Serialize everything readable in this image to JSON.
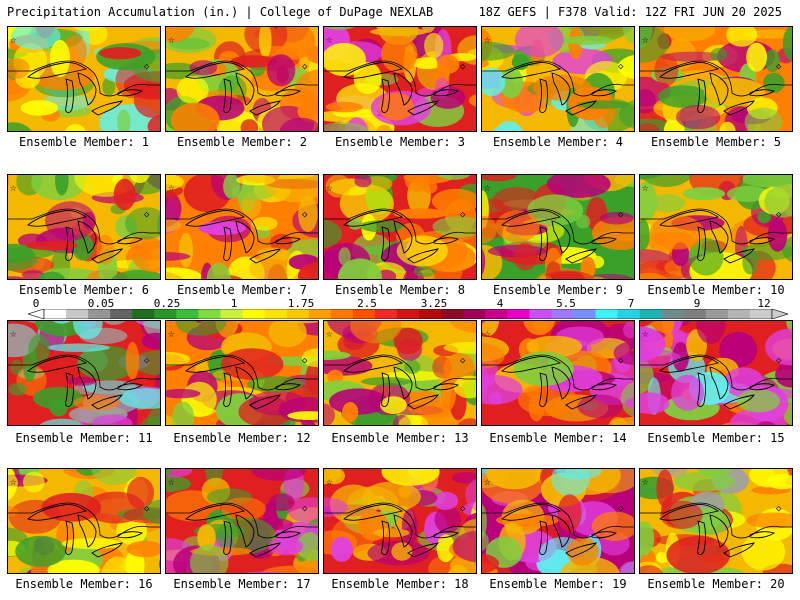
{
  "header": {
    "left": "Precipitation Accumulation (in.) | College of DuPage NEXLAB",
    "right": "18Z GEFS | F378 Valid: 12Z FRI JUN 20 2025"
  },
  "panels": [
    {
      "label": "Ensemble Member: 1",
      "dominant": "mixed-green-orange",
      "colors": [
        "#f5b800",
        "#ff7f00",
        "#7fcf3f",
        "#3aa02a",
        "#ffff00",
        "#e02020",
        "#5ff0f0"
      ]
    },
    {
      "label": "Ensemble Member: 2",
      "dominant": "green-red",
      "colors": [
        "#f5b800",
        "#3aa02a",
        "#7fcf3f",
        "#e02020",
        "#b8007a",
        "#ff7f00",
        "#ffff00"
      ]
    },
    {
      "label": "Ensemble Member: 3",
      "dominant": "red-magenta",
      "colors": [
        "#e02020",
        "#b8007a",
        "#ff7f00",
        "#f5b800",
        "#e040e0",
        "#7fcf3f",
        "#ffff00"
      ]
    },
    {
      "label": "Ensemble Member: 4",
      "dominant": "yellow-green",
      "colors": [
        "#f5b800",
        "#ffff00",
        "#7fcf3f",
        "#3aa02a",
        "#ff7f00",
        "#e040e0",
        "#5ff0f0"
      ]
    },
    {
      "label": "Ensemble Member: 5",
      "dominant": "orange-red",
      "colors": [
        "#ff7f00",
        "#e02020",
        "#f5b800",
        "#7fcf3f",
        "#ffff00",
        "#b8007a",
        "#3aa02a"
      ]
    },
    {
      "label": "Ensemble Member: 6",
      "dominant": "green-orange",
      "colors": [
        "#f5b800",
        "#7fcf3f",
        "#3aa02a",
        "#e02020",
        "#ff7f00",
        "#ffff00",
        "#b8007a"
      ]
    },
    {
      "label": "Ensemble Member: 7",
      "dominant": "orange-red",
      "colors": [
        "#ff7f00",
        "#e02020",
        "#f5b800",
        "#7fcf3f",
        "#b8007a",
        "#ffff00",
        "#e040e0"
      ]
    },
    {
      "label": "Ensemble Member: 8",
      "dominant": "red",
      "colors": [
        "#e02020",
        "#ff7f00",
        "#f5b800",
        "#b8007a",
        "#7fcf3f",
        "#ffff00",
        "#3aa02a"
      ]
    },
    {
      "label": "Ensemble Member: 9",
      "dominant": "green",
      "colors": [
        "#3aa02a",
        "#7fcf3f",
        "#f5b800",
        "#ff7f00",
        "#e02020",
        "#ffff00",
        "#b8007a"
      ]
    },
    {
      "label": "Ensemble Member: 10",
      "dominant": "orange-green",
      "colors": [
        "#f5b800",
        "#7fcf3f",
        "#ff7f00",
        "#e02020",
        "#3aa02a",
        "#ffff00",
        "#b8007a"
      ]
    },
    {
      "label": "Ensemble Member: 11",
      "dominant": "magenta-red",
      "colors": [
        "#e02020",
        "#b8007a",
        "#e040e0",
        "#3aa02a",
        "#ff7f00",
        "#5ff0f0",
        "#a0a0a0"
      ]
    },
    {
      "label": "Ensemble Member: 12",
      "dominant": "orange-red",
      "colors": [
        "#ff7f00",
        "#e02020",
        "#f5b800",
        "#7fcf3f",
        "#b8007a",
        "#ffff00",
        "#3aa02a"
      ]
    },
    {
      "label": "Ensemble Member: 13",
      "dominant": "orange-green",
      "colors": [
        "#f5b800",
        "#ff7f00",
        "#7fcf3f",
        "#3aa02a",
        "#e02020",
        "#ffff00",
        "#b8007a"
      ]
    },
    {
      "label": "Ensemble Member: 14",
      "dominant": "red",
      "colors": [
        "#e02020",
        "#ff7f00",
        "#b8007a",
        "#f5b800",
        "#e040e0",
        "#7fcf3f",
        "#ffff00"
      ]
    },
    {
      "label": "Ensemble Member: 15",
      "dominant": "red-magenta",
      "colors": [
        "#e02020",
        "#b8007a",
        "#ff7f00",
        "#e040e0",
        "#5ff0f0",
        "#f5b800",
        "#7fcf3f"
      ]
    },
    {
      "label": "Ensemble Member: 16",
      "dominant": "yellow-green",
      "colors": [
        "#f5b800",
        "#7fcf3f",
        "#ffff00",
        "#3aa02a",
        "#ff7f00",
        "#e02020",
        "#b8007a"
      ]
    },
    {
      "label": "Ensemble Member: 17",
      "dominant": "red-magenta",
      "colors": [
        "#e02020",
        "#b8007a",
        "#e040e0",
        "#ff7f00",
        "#f5b800",
        "#7fcf3f",
        "#3aa02a"
      ]
    },
    {
      "label": "Ensemble Member: 18",
      "dominant": "red-orange",
      "colors": [
        "#e02020",
        "#ff7f00",
        "#b8007a",
        "#f5b800",
        "#7fcf3f",
        "#e040e0",
        "#ffff00"
      ]
    },
    {
      "label": "Ensemble Member: 19",
      "dominant": "red-magenta",
      "colors": [
        "#b8007a",
        "#e02020",
        "#e040e0",
        "#ff7f00",
        "#5ff0f0",
        "#f5b800",
        "#7fcf3f"
      ]
    },
    {
      "label": "Ensemble Member: 20",
      "dominant": "yellow-green",
      "colors": [
        "#f5b800",
        "#7fcf3f",
        "#3aa02a",
        "#ffff00",
        "#ff7f00",
        "#e02020",
        "#a0a0a0"
      ]
    }
  ],
  "colorbar": {
    "ticks": [
      "0",
      "0.05",
      "0.25",
      "1",
      "1.75",
      "2.5",
      "3.25",
      "4",
      "5.5",
      "7",
      "9",
      "12"
    ],
    "colors": [
      "#ffffff",
      "#c8c8c8",
      "#969696",
      "#646464",
      "#1e6e1e",
      "#2a962a",
      "#3cbe3c",
      "#7fdc3f",
      "#c8f03c",
      "#ffff00",
      "#ffe400",
      "#ffc800",
      "#ffa000",
      "#ff7800",
      "#ff5000",
      "#f02828",
      "#d21414",
      "#b40a0a",
      "#8c0a28",
      "#a0005a",
      "#c8008c",
      "#e600c8",
      "#c850f0",
      "#a078ff",
      "#7890ff",
      "#3cf0ff",
      "#28d2e6",
      "#1eb4b4",
      "#6e8c8c",
      "#7e7e7e",
      "#9a9a9a",
      "#b4b4b4",
      "#cdcdcd"
    ]
  }
}
